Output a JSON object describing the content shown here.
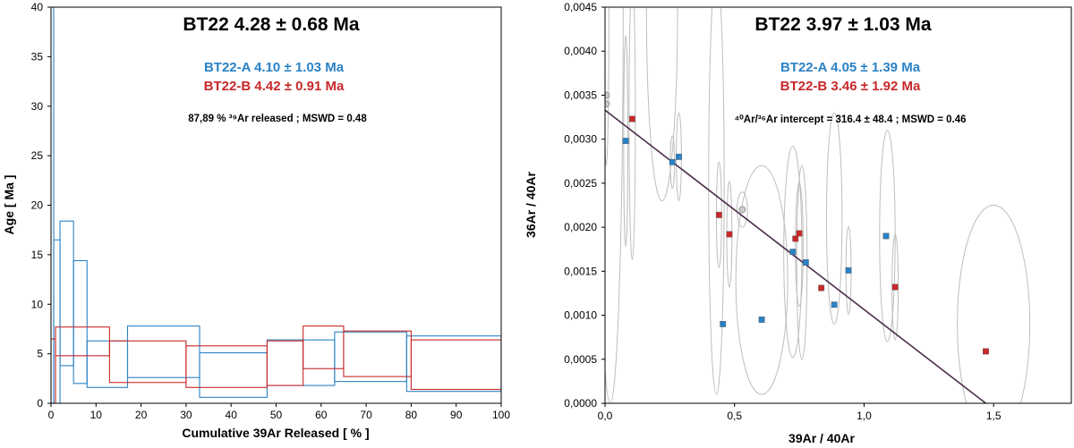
{
  "colors": {
    "A": "#2a82c6",
    "B": "#c8282a",
    "line": "#4a2d4a",
    "ellipse": "#bdbdbd",
    "grey": "#cccccc"
  },
  "chart_data": [
    {
      "type": "step",
      "title": "BT22 4.28 ± 0.68 Ma",
      "subtitle_a": "BT22-A 4.10 ± 1.03 Ma",
      "subtitle_b": "BT22-B 4.42 ± 0.91 Ma",
      "note": "87,89 % ³⁹Ar released ; MSWD = 0.48",
      "xlabel": "Cumulative 39Ar Released [ % ]",
      "ylabel": "Age [ Ma ]",
      "xlim": [
        0,
        100
      ],
      "ylim": [
        0,
        40
      ],
      "xticks": [
        "0",
        "10",
        "20",
        "30",
        "40",
        "50",
        "60",
        "70",
        "80",
        "90",
        "100"
      ],
      "yticks": [
        "0",
        "5",
        "10",
        "15",
        "20",
        "25",
        "30",
        "35",
        "40"
      ],
      "series": [
        {
          "name": "BT22-A",
          "steps": [
            {
              "x0": 0,
              "x1": 0.6,
              "lo": 0,
              "hi": 40
            },
            {
              "x0": 0.6,
              "x1": 2,
              "lo": 0,
              "hi": 16.5
            },
            {
              "x0": 2,
              "x1": 5,
              "lo": 3.8,
              "hi": 18.4
            },
            {
              "x0": 5,
              "x1": 8,
              "lo": 2,
              "hi": 14.4
            },
            {
              "x0": 8,
              "x1": 17,
              "lo": 1.6,
              "hi": 6.3
            },
            {
              "x0": 17,
              "x1": 33,
              "lo": 2.6,
              "hi": 7.8
            },
            {
              "x0": 33,
              "x1": 48,
              "lo": 0.6,
              "hi": 5.1
            },
            {
              "x0": 48,
              "x1": 63,
              "lo": 1.8,
              "hi": 6.4
            },
            {
              "x0": 63,
              "x1": 79,
              "lo": 2.2,
              "hi": 7.2
            },
            {
              "x0": 79,
              "x1": 100,
              "lo": 1.2,
              "hi": 6.8
            }
          ]
        },
        {
          "name": "BT22-B",
          "steps": [
            {
              "x0": 0,
              "x1": 1,
              "lo": 0,
              "hi": 6.5
            },
            {
              "x0": 1,
              "x1": 13,
              "lo": 4.8,
              "hi": 7.7
            },
            {
              "x0": 13,
              "x1": 30,
              "lo": 2.1,
              "hi": 6.3
            },
            {
              "x0": 30,
              "x1": 48,
              "lo": 1.6,
              "hi": 5.8
            },
            {
              "x0": 48,
              "x1": 56,
              "lo": 1.8,
              "hi": 6.3
            },
            {
              "x0": 56,
              "x1": 65,
              "lo": 3.5,
              "hi": 7.8
            },
            {
              "x0": 65,
              "x1": 80,
              "lo": 2.7,
              "hi": 7.3
            },
            {
              "x0": 80,
              "x1": 100,
              "lo": 1.4,
              "hi": 6.4
            }
          ]
        }
      ]
    },
    {
      "type": "scatter",
      "title": "BT22 3.97 ± 1.03 Ma",
      "subtitle_a": "BT22-A 4.05 ± 1.39 Ma",
      "subtitle_b": "BT22-B 3.46 ± 1.92 Ma",
      "note": "⁴⁰Ar/³⁶Ar intercept = 316.4 ± 48.4 ; MSWD = 0.46",
      "xlabel": "39Ar / 40Ar",
      "ylabel": "36Ar / 40Ar",
      "xlim": [
        0,
        1.8
      ],
      "ylim": [
        0,
        0.0045
      ],
      "xticks": [
        {
          "v": 0,
          "t": "0,0"
        },
        {
          "v": 0.5,
          "t": "0,5"
        },
        {
          "v": 1.0,
          "t": "1,0"
        },
        {
          "v": 1.5,
          "t": "1,5"
        }
      ],
      "yticks": [
        {
          "v": 0,
          "t": "0,0000"
        },
        {
          "v": 0.0005,
          "t": "0,0005"
        },
        {
          "v": 0.001,
          "t": "0,0010"
        },
        {
          "v": 0.0015,
          "t": "0,0015"
        },
        {
          "v": 0.002,
          "t": "0,0020"
        },
        {
          "v": 0.0025,
          "t": "0,0025"
        },
        {
          "v": 0.003,
          "t": "0,0030"
        },
        {
          "v": 0.0035,
          "t": "0,0035"
        },
        {
          "v": 0.004,
          "t": "0,0040"
        },
        {
          "v": 0.0045,
          "t": "0,0045"
        }
      ],
      "isochron": {
        "x": [
          0,
          1.47
        ],
        "y": [
          0.00333,
          0
        ]
      },
      "series": [
        {
          "name": "BT22-A",
          "points": [
            [
              0.08,
              0.00298
            ],
            [
              0.26,
              0.00274
            ],
            [
              0.285,
              0.0028
            ],
            [
              0.455,
              0.0009
            ],
            [
              0.605,
              0.00095
            ],
            [
              0.725,
              0.00172
            ],
            [
              0.775,
              0.0016
            ],
            [
              0.885,
              0.00112
            ],
            [
              0.94,
              0.00151
            ],
            [
              1.085,
              0.0019
            ]
          ]
        },
        {
          "name": "BT22-B",
          "points": [
            [
              0.105,
              0.00323
            ],
            [
              0.44,
              0.00214
            ],
            [
              0.48,
              0.00192
            ],
            [
              0.735,
              0.00187
            ],
            [
              0.75,
              0.00193
            ],
            [
              0.835,
              0.00131
            ],
            [
              1.12,
              0.00132
            ],
            [
              1.47,
              0.00059
            ]
          ]
        },
        {
          "name": "excluded",
          "points": [
            [
              0.53,
              0.0022
            ],
            [
              0.005,
              0.0035
            ],
            [
              0.005,
              0.0034
            ]
          ]
        }
      ],
      "ellipses": [
        {
          "x": 0.005,
          "y": 0.0045,
          "rx": 0.01,
          "ry": 0.0018
        },
        {
          "x": 0.02,
          "y": 0.0045,
          "rx": 0.05,
          "ry": 0.0045
        },
        {
          "x": 0.08,
          "y": 0.00298,
          "rx": 0.008,
          "ry": 0.0012
        },
        {
          "x": 0.105,
          "y": 0.00323,
          "rx": 0.012,
          "ry": 0.0016
        },
        {
          "x": 0.22,
          "y": 0.0045,
          "rx": 0.06,
          "ry": 0.0022
        },
        {
          "x": 0.26,
          "y": 0.00274,
          "rx": 0.008,
          "ry": 0.0003
        },
        {
          "x": 0.285,
          "y": 0.0028,
          "rx": 0.01,
          "ry": 0.0005
        },
        {
          "x": 0.43,
          "y": 0.0025,
          "rx": 0.03,
          "ry": 0.0024
        },
        {
          "x": 0.44,
          "y": 0.00214,
          "rx": 0.01,
          "ry": 0.0006
        },
        {
          "x": 0.48,
          "y": 0.00192,
          "rx": 0.01,
          "ry": 0.0006
        },
        {
          "x": 0.53,
          "y": 0.0022,
          "rx": 0.02,
          "ry": 0.0002
        },
        {
          "x": 0.605,
          "y": 0.0014,
          "rx": 0.1,
          "ry": 0.0013
        },
        {
          "x": 0.725,
          "y": 0.00172,
          "rx": 0.035,
          "ry": 0.0012
        },
        {
          "x": 0.75,
          "y": 0.0018,
          "rx": 0.015,
          "ry": 0.0007
        },
        {
          "x": 0.76,
          "y": 0.0016,
          "rx": 0.02,
          "ry": 0.0011
        },
        {
          "x": 0.885,
          "y": 0.0021,
          "rx": 0.03,
          "ry": 0.0012
        },
        {
          "x": 0.94,
          "y": 0.00151,
          "rx": 0.01,
          "ry": 0.0005
        },
        {
          "x": 1.09,
          "y": 0.0019,
          "rx": 0.03,
          "ry": 0.0012
        },
        {
          "x": 1.12,
          "y": 0.00132,
          "rx": 0.012,
          "ry": 0.0006
        },
        {
          "x": 1.5,
          "y": 0.0009,
          "rx": 0.14,
          "ry": 0.00135
        }
      ]
    }
  ]
}
